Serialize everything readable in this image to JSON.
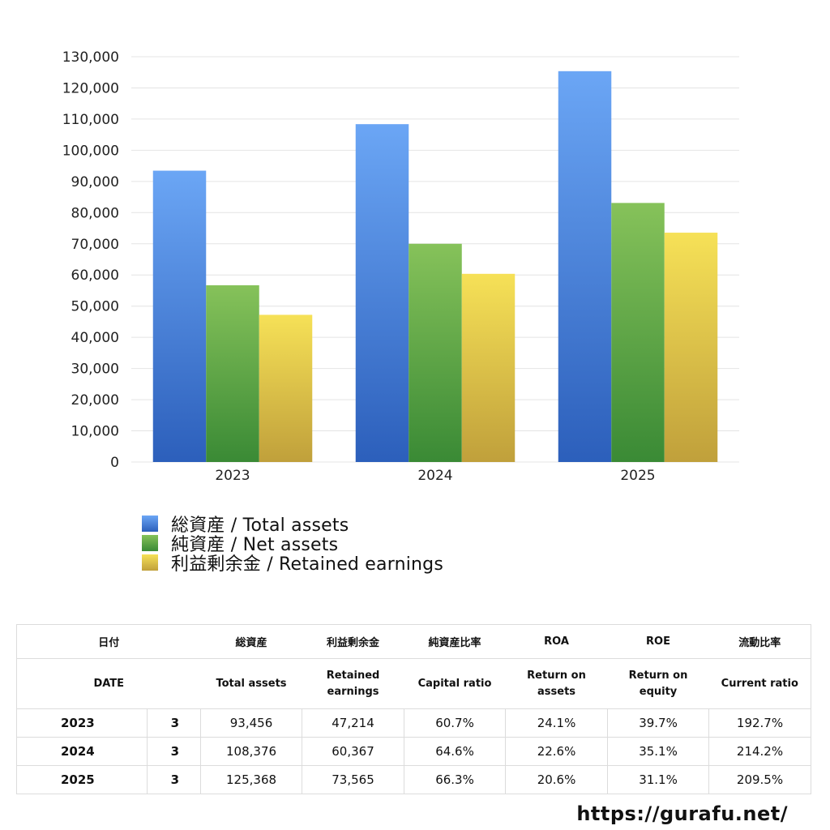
{
  "chart_data": {
    "type": "bar",
    "categories": [
      "2023",
      "2024",
      "2025"
    ],
    "series": [
      {
        "name": "総資産 / Total assets",
        "values": [
          93456,
          108376,
          125368
        ],
        "color_top": "#6ba6f5",
        "color_bottom": "#2c5fbb"
      },
      {
        "name": "純資産 / Net assets",
        "values": [
          56700,
          70000,
          83100
        ],
        "color_top": "#86c25a",
        "color_bottom": "#3a8a35"
      },
      {
        "name": "利益剰余金 / Retained earnings",
        "values": [
          47214,
          60367,
          73565
        ],
        "color_top": "#f6e157",
        "color_bottom": "#c0a03b"
      }
    ],
    "y_ticks": [
      "0",
      "10,000",
      "20,000",
      "30,000",
      "40,000",
      "50,000",
      "60,000",
      "70,000",
      "80,000",
      "90,000",
      "100,000",
      "110,000",
      "120,000",
      "130,000"
    ],
    "ylim": [
      0,
      130000
    ],
    "grid": true,
    "legend_position": "bottom-left"
  },
  "table": {
    "header_jp": [
      "日付",
      "総資産",
      "利益剰余金",
      "純資産比率",
      "ROA",
      "ROE",
      "流動比率"
    ],
    "header_en": [
      "DATE",
      "Total assets",
      "Retained earnings",
      "Capital ratio",
      "Return on assets",
      "Return on equity",
      "Current ratio"
    ],
    "rows": [
      {
        "year": "2023",
        "month": "3",
        "total_assets": "93,456",
        "retained": "47,214",
        "capital_ratio": "60.7%",
        "roa": "24.1%",
        "roe": "39.7%",
        "current_ratio": "192.7%"
      },
      {
        "year": "2024",
        "month": "3",
        "total_assets": "108,376",
        "retained": "60,367",
        "capital_ratio": "64.6%",
        "roa": "22.6%",
        "roe": "35.1%",
        "current_ratio": "214.2%"
      },
      {
        "year": "2025",
        "month": "3",
        "total_assets": "125,368",
        "retained": "73,565",
        "capital_ratio": "66.3%",
        "roa": "20.6%",
        "roe": "31.1%",
        "current_ratio": "209.5%"
      }
    ]
  },
  "footer": {
    "url": "https://gurafu.net/"
  }
}
